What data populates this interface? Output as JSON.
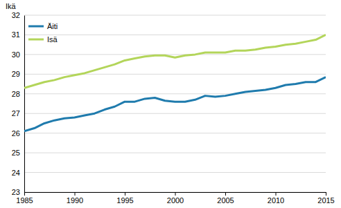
{
  "chart_data": {
    "type": "line",
    "y_label": "Ikä",
    "x": [
      1985,
      1986,
      1987,
      1988,
      1989,
      1990,
      1991,
      1992,
      1993,
      1994,
      1995,
      1996,
      1997,
      1998,
      1999,
      2000,
      2001,
      2002,
      2003,
      2004,
      2005,
      2006,
      2007,
      2008,
      2009,
      2010,
      2011,
      2012,
      2013,
      2014,
      2015
    ],
    "series": [
      {
        "name": "Äiti",
        "color": "#1f7bad",
        "values": [
          26.1,
          26.25,
          26.5,
          26.65,
          26.75,
          26.8,
          26.9,
          27.0,
          27.2,
          27.35,
          27.6,
          27.6,
          27.75,
          27.8,
          27.65,
          27.6,
          27.6,
          27.7,
          27.9,
          27.85,
          27.9,
          28.0,
          28.1,
          28.15,
          28.2,
          28.3,
          28.45,
          28.5,
          28.6,
          28.6,
          28.85
        ]
      },
      {
        "name": "Isä",
        "color": "#b3d55a",
        "values": [
          28.3,
          28.45,
          28.6,
          28.7,
          28.85,
          28.95,
          29.05,
          29.2,
          29.35,
          29.5,
          29.7,
          29.8,
          29.9,
          29.95,
          29.95,
          29.85,
          29.95,
          30.0,
          30.1,
          30.1,
          30.1,
          30.2,
          30.2,
          30.25,
          30.35,
          30.4,
          30.5,
          30.55,
          30.65,
          30.75,
          31.0
        ]
      }
    ],
    "xlim": [
      1985,
      2015
    ],
    "xticks": [
      1985,
      1990,
      1995,
      2000,
      2005,
      2010,
      2015
    ],
    "ylim": [
      23,
      32
    ],
    "yticks": [
      23,
      24,
      25,
      26,
      27,
      28,
      29,
      30,
      31,
      32
    ],
    "grid": true,
    "legend": "top-left"
  }
}
